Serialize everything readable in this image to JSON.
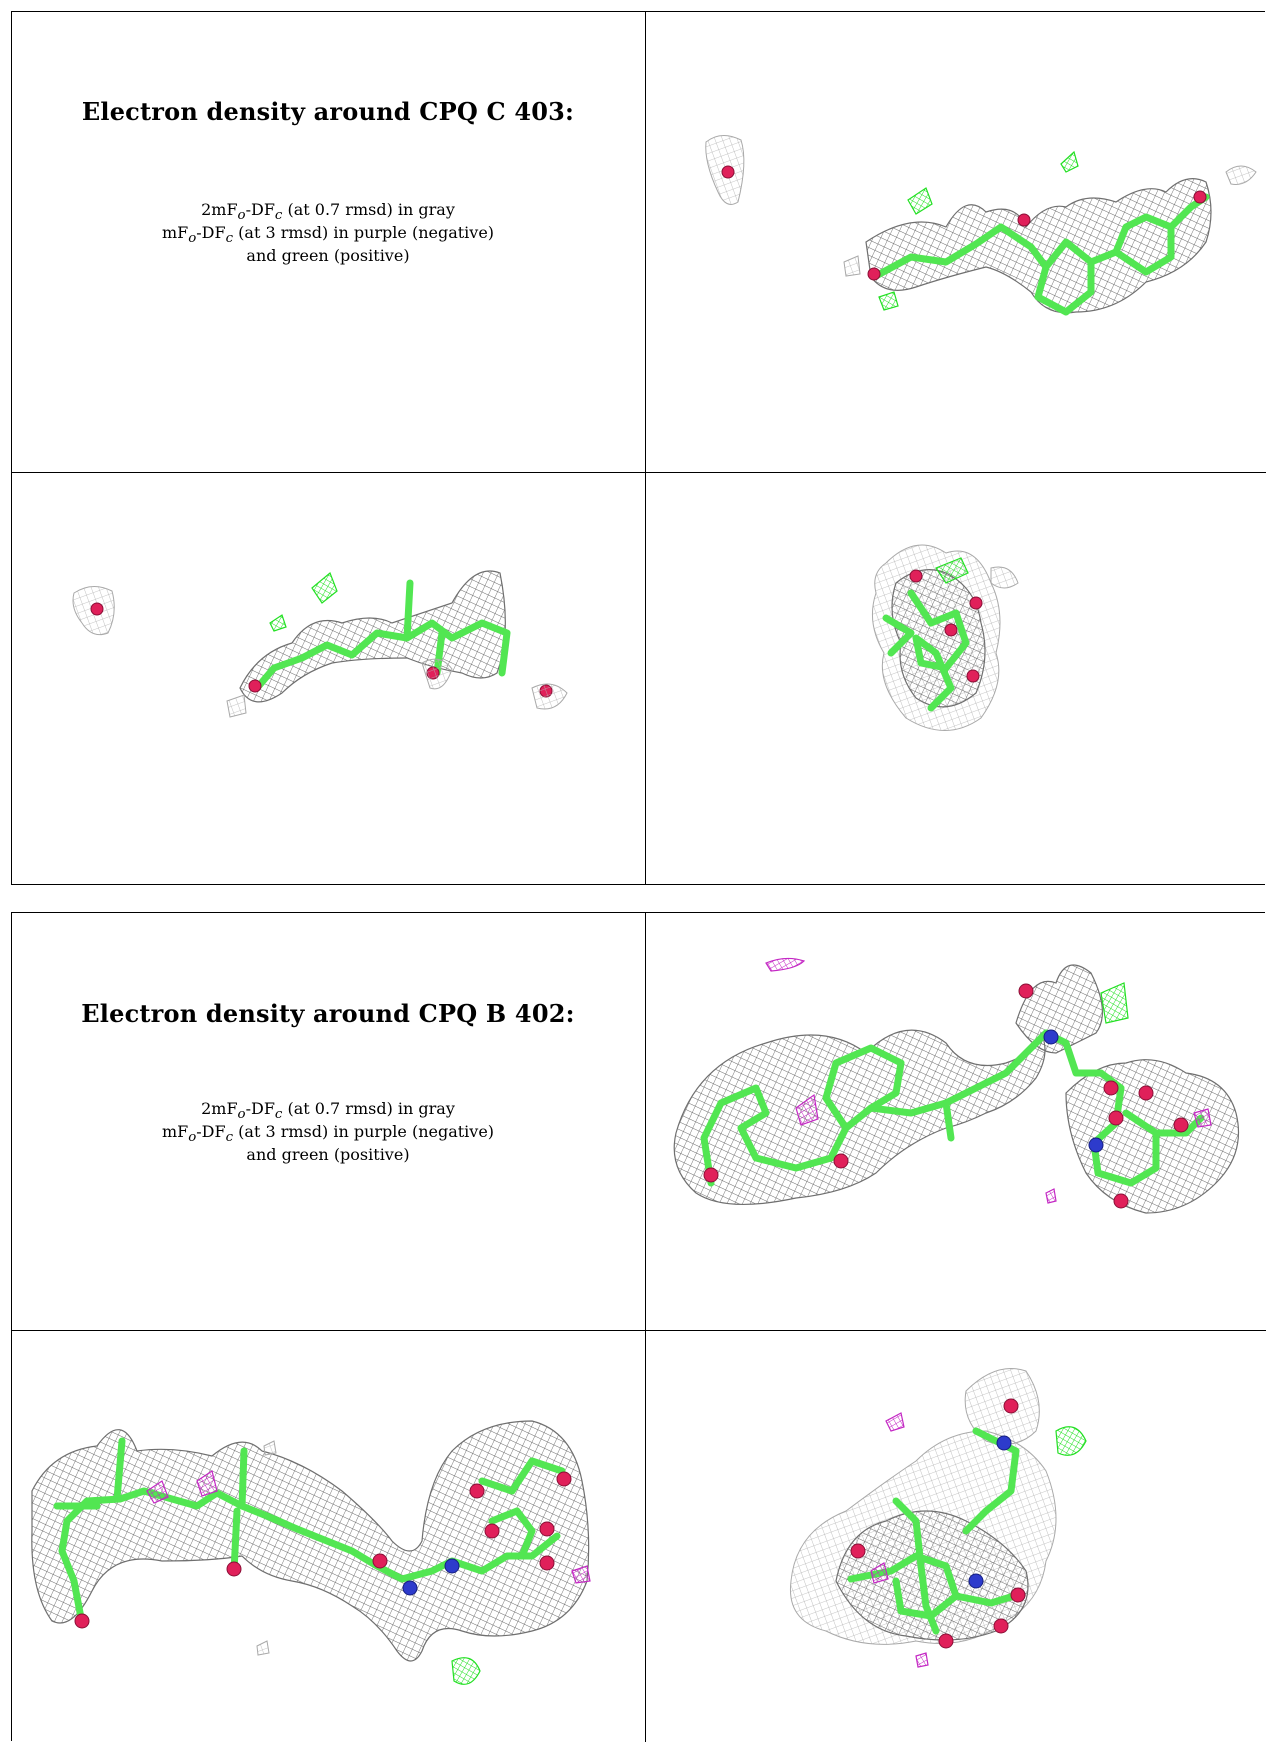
{
  "sections": [
    {
      "id": "cpq-c-403",
      "title": "Electron density around CPQ C 403:",
      "legend": {
        "line1_prefix": "2mF",
        "line1_mid": "-DF",
        "line1_suffix": " (at 0.7 rmsd) in gray",
        "line2_prefix": "mF",
        "line2_mid": "-DF",
        "line2_suffix": " (at 3 rmsd) in purple (negative)",
        "line3": "and green (positive)",
        "sub_o": "o",
        "sub_c": "c"
      }
    },
    {
      "id": "cpq-b-402",
      "title": "Electron density around CPQ B 402:",
      "legend": {
        "line1_prefix": "2mF",
        "line1_mid": "-DF",
        "line1_suffix": " (at 0.7 rmsd) in gray",
        "line2_prefix": "mF",
        "line2_mid": "-DF",
        "line2_suffix": " (at 3 rmsd) in purple (negative)",
        "line3": "and green (positive)",
        "sub_o": "o",
        "sub_c": "c"
      }
    }
  ],
  "colors": {
    "density_2fofc": "#808080",
    "density_negative": "#c428c4",
    "density_positive": "#22e022",
    "carbon": "#52e652",
    "oxygen": "#e0205a",
    "nitrogen": "#2d3bcc"
  }
}
